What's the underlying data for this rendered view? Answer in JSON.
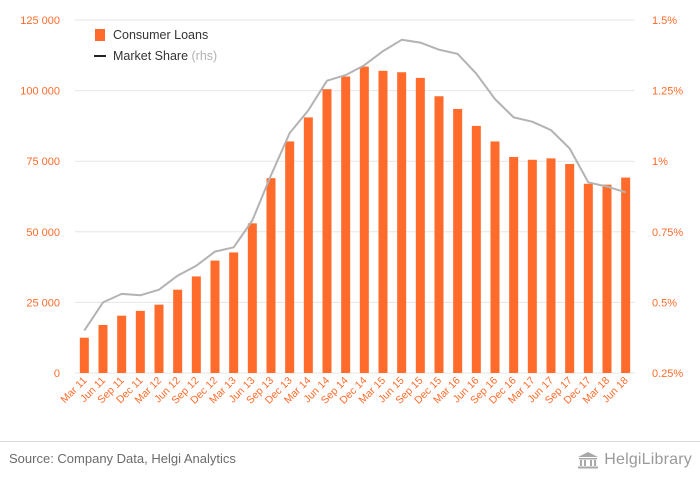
{
  "chart_data": {
    "type": "bar",
    "categories": [
      "Mar 11",
      "Jun 11",
      "Sep 11",
      "Dec 11",
      "Mar 12",
      "Jun 12",
      "Sep 12",
      "Dec 12",
      "Mar 13",
      "Jun 13",
      "Sep 13",
      "Dec 13",
      "Mar 14",
      "Jun 14",
      "Sep 14",
      "Dec 14",
      "Mar 15",
      "Jun 15",
      "Sep 15",
      "Dec 15",
      "Mar 16",
      "Jun 16",
      "Sep 16",
      "Dec 16",
      "Mar 17",
      "Jun 17",
      "Sep 17",
      "Dec 17",
      "Mar 18",
      "Jun 18"
    ],
    "series": [
      {
        "name": "Consumer Loans",
        "type": "bar",
        "axis": "left",
        "color": "#ff6b2b",
        "values": [
          12500,
          17000,
          20300,
          22000,
          24200,
          29500,
          34200,
          39800,
          42700,
          53000,
          69000,
          82000,
          90500,
          100500,
          105000,
          108500,
          107000,
          106500,
          104500,
          98000,
          93500,
          87500,
          82000,
          76500,
          75500,
          76000,
          74000,
          67000,
          66700,
          69200
        ]
      },
      {
        "name": "Market Share",
        "type": "line",
        "axis": "right",
        "color": "#b3b3b3",
        "values": [
          0.4,
          0.5,
          0.53,
          0.525,
          0.545,
          0.595,
          0.63,
          0.68,
          0.695,
          0.79,
          0.95,
          1.1,
          1.18,
          1.285,
          1.305,
          1.34,
          1.39,
          1.43,
          1.42,
          1.395,
          1.38,
          1.31,
          1.22,
          1.155,
          1.14,
          1.11,
          1.045,
          0.925,
          0.91,
          0.89
        ]
      }
    ],
    "legend": [
      {
        "label": "Consumer Loans",
        "suffix": ""
      },
      {
        "label": "Market Share",
        "suffix": " (rhs)"
      }
    ],
    "legend_position": "top-left",
    "y_left": {
      "min": 0,
      "max": 125000,
      "ticks": [
        0,
        25000,
        50000,
        75000,
        100000,
        125000
      ],
      "tick_labels": [
        "0",
        "25 000",
        "50 000",
        "75 000",
        "100 000",
        "125 000"
      ]
    },
    "y_right": {
      "min": 0.25,
      "max": 1.5,
      "ticks": [
        0.25,
        0.5,
        0.75,
        1,
        1.25,
        1.5
      ],
      "tick_labels": [
        "0.25%",
        "0.5%",
        "0.75%",
        "1%",
        "1.25%",
        "1.5%"
      ]
    },
    "grid": true,
    "title": "",
    "xlabel": "",
    "ylabel": ""
  },
  "footer": {
    "source": "Source: Company Data, Helgi Analytics",
    "brand": "HelgiLibrary"
  },
  "colors": {
    "axis_text": "#ff6b2b",
    "grid": "#e6e6e6",
    "legend_line": "#222222"
  }
}
